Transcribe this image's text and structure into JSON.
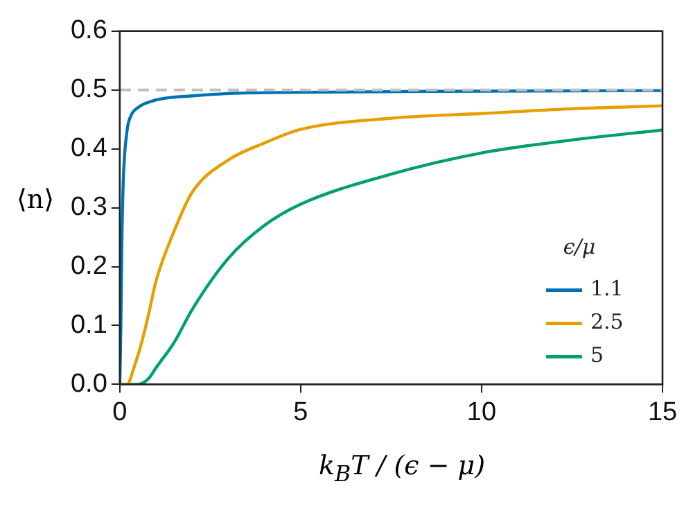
{
  "chart_data": {
    "type": "line",
    "xlabel": "k$_{B}$T / (ϵ − μ)",
    "ylabel": "⟨n⟩",
    "legend_title": "ϵ/μ",
    "legend": "bottom right",
    "xlim": [
      0,
      15
    ],
    "xticks": [
      0,
      5,
      10,
      15
    ],
    "ylim": [
      0,
      0.6
    ],
    "yticks": [
      {
        "value": 0,
        "label": "0.0"
      },
      0.1,
      0.2,
      0.3,
      0.4,
      0.5,
      0.6
    ],
    "marker": "none",
    "line_style": "solid",
    "ref_lines": [
      {
        "axis": "y",
        "value": 0.5,
        "color": "#c0c0c0",
        "line_style": "dashed"
      }
    ],
    "series": [
      {
        "name": "1.1",
        "color": "#0072b2",
        "x": [
          0,
          0.03,
          0.06,
          0.1,
          0.2,
          0.3,
          0.5,
          1,
          2,
          3,
          5,
          10,
          15
        ],
        "values": [
          0,
          0.1,
          0.25,
          0.35,
          0.43,
          0.455,
          0.47,
          0.483,
          0.49,
          0.494,
          0.496,
          0.498,
          0.499
        ]
      },
      {
        "name": "2.5",
        "color": "#e69f00",
        "x": [
          0,
          0.2,
          0.4,
          0.6,
          0.8,
          1,
          1.5,
          2,
          3,
          4,
          5,
          7.5,
          10,
          12.5,
          15
        ],
        "values": [
          0,
          0,
          0.03,
          0.07,
          0.12,
          0.175,
          0.26,
          0.326,
          0.381,
          0.41,
          0.433,
          0.452,
          0.46,
          0.468,
          0.473
        ]
      },
      {
        "name": "5",
        "color": "#009e73",
        "x": [
          0,
          0.5,
          0.8,
          1,
          1.5,
          2,
          3,
          4,
          5,
          7.5,
          10,
          12.5,
          15
        ],
        "values": [
          0,
          0,
          0.01,
          0.028,
          0.071,
          0.127,
          0.214,
          0.27,
          0.306,
          0.357,
          0.393,
          0.415,
          0.432
        ]
      }
    ]
  }
}
